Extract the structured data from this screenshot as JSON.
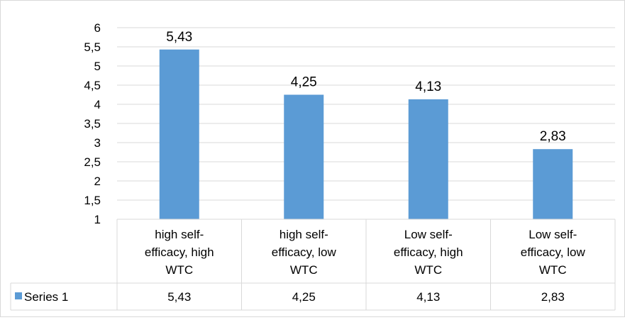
{
  "chart_data": {
    "type": "bar",
    "categories": [
      [
        "high self-",
        "efficacy, high",
        "WTC"
      ],
      [
        "high self-",
        "efficacy, low",
        "WTC"
      ],
      [
        "Low self-",
        "efficacy, high",
        "WTC"
      ],
      [
        "Low self-",
        "efficacy, low",
        "WTC"
      ]
    ],
    "series": [
      {
        "name": "Series 1",
        "values": [
          5.43,
          4.25,
          4.13,
          2.83
        ],
        "color": "#5b9bd5"
      }
    ],
    "data_labels": [
      "5,43",
      "4,25",
      "4,13",
      "2,83"
    ],
    "table_values": [
      "5,43",
      "4,25",
      "4,13",
      "2,83"
    ],
    "y_ticks": [
      "1",
      "1,5",
      "2",
      "2,5",
      "3",
      "3,5",
      "4",
      "4,5",
      "5",
      "5,5",
      "6"
    ],
    "ylim": [
      1,
      6
    ],
    "grid": true,
    "legend": "data-table",
    "title": "",
    "xlabel": "",
    "ylabel": ""
  }
}
